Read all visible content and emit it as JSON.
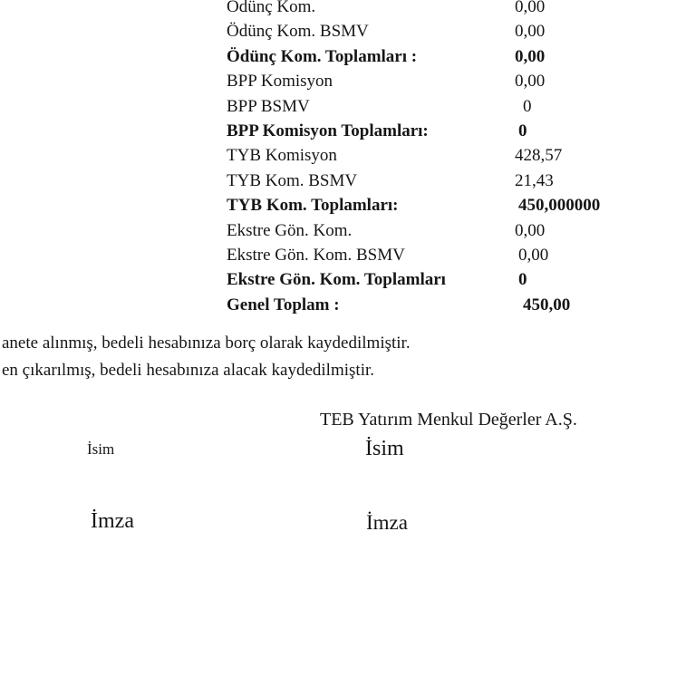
{
  "table": {
    "rows": [
      {
        "label": "Ödünç Kom.",
        "value": "0,00"
      },
      {
        "label": "Ödünç Kom. BSMV",
        "value": "0,00"
      },
      {
        "label": "Ödünç Kom. Toplamları :",
        "value": "0,00"
      },
      {
        "label": "BPP Komisyon",
        "value": "0,00"
      },
      {
        "label": "BPP BSMV",
        "value": "0"
      },
      {
        "label": "BPP Komisyon Toplamları:",
        "value": "0"
      },
      {
        "label": "TYB Komisyon",
        "value": "428,57"
      },
      {
        "label": "TYB Kom. BSMV",
        "value": "21,43"
      },
      {
        "label": "TYB Kom. Toplamları:",
        "value": "450,000000"
      },
      {
        "label": "Ekstre Gön. Kom.",
        "value": "0,00"
      },
      {
        "label": "Ekstre Gön. Kom. BSMV",
        "value": "0,00"
      },
      {
        "label": "Ekstre Gön. Kom. Toplamları",
        "value": "0"
      },
      {
        "label": "Genel Toplam :",
        "value": "450,00"
      }
    ]
  },
  "notes": {
    "line1": "anete alınmış, bedeli hesabınıza borç olarak kaydedilmiştir.",
    "line2": "en çıkarılmış, bedeli hesabınıza alacak kaydedilmiştir."
  },
  "signature": {
    "company": "TEB Yatırım Menkul Değerler A.Ş.",
    "name_left": "İsim",
    "name_right": "İsim",
    "sign_left": "İmza",
    "sign_right": "İmza"
  },
  "colors": {
    "text": "#161616",
    "background": "#ffffff"
  }
}
